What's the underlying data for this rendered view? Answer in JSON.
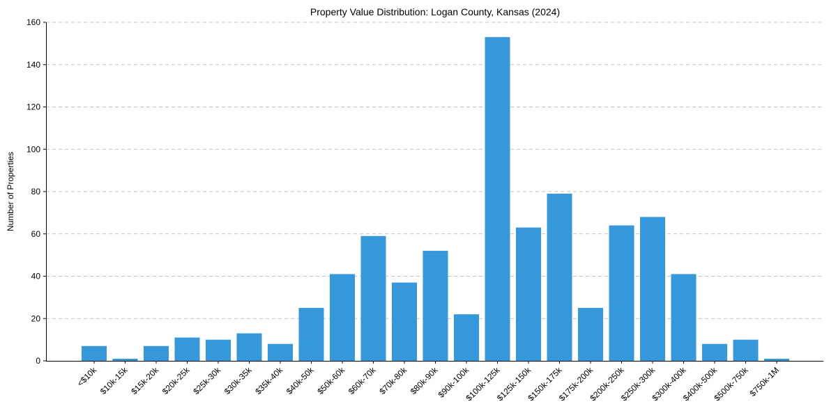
{
  "chart_data": {
    "type": "bar",
    "title": "Property Value Distribution: Logan County, Kansas (2024)",
    "xlabel": "",
    "ylabel": "Number of Properties",
    "ylim": [
      0,
      160
    ],
    "yticks": [
      0,
      20,
      40,
      60,
      80,
      100,
      120,
      140,
      160
    ],
    "grid": "y-dashed",
    "bar_color": "#3498db",
    "categories": [
      "<$10k",
      "$10k-15k",
      "$15k-20k",
      "$20k-25k",
      "$25k-30k",
      "$30k-35k",
      "$35k-40k",
      "$40k-50k",
      "$50k-60k",
      "$60k-70k",
      "$70k-80k",
      "$80k-90k",
      "$90k-100k",
      "$100k-125k",
      "$125k-150k",
      "$150k-175k",
      "$175k-200k",
      "$200k-250k",
      "$250k-300k",
      "$300k-400k",
      "$400k-500k",
      "$500k-750k",
      "$750k-1M"
    ],
    "values": [
      7,
      1,
      7,
      11,
      10,
      13,
      8,
      25,
      41,
      59,
      37,
      52,
      22,
      153,
      63,
      79,
      25,
      64,
      68,
      41,
      8,
      10,
      1
    ]
  }
}
